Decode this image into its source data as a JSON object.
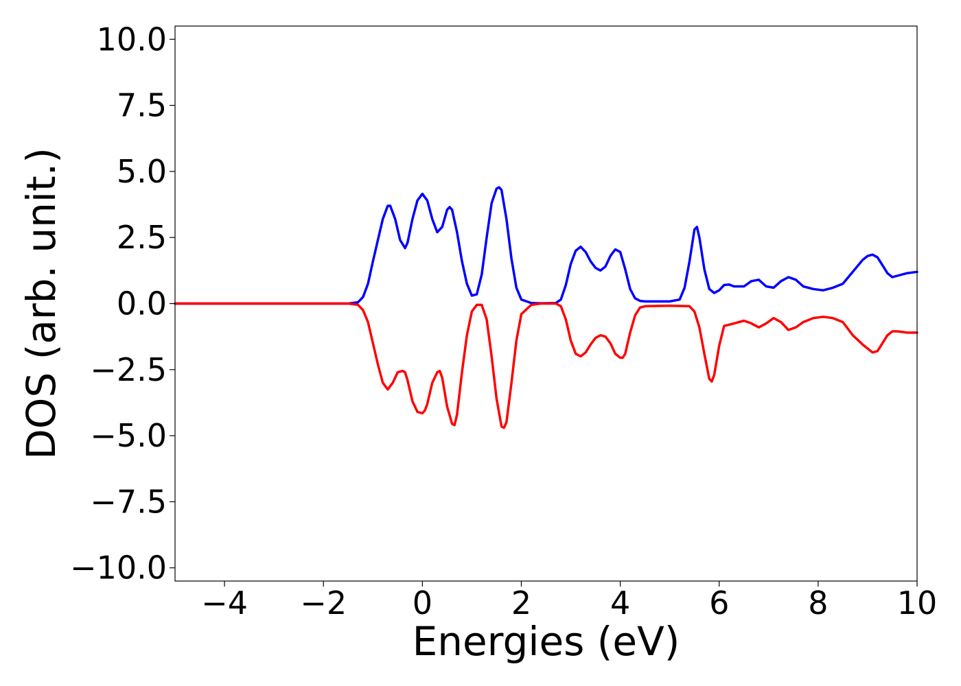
{
  "chart_data": {
    "type": "line",
    "title": "",
    "xlabel": "Energies (eV)",
    "ylabel": "DOS (arb. unit.)",
    "xlim": [
      -5,
      10
    ],
    "ylim": [
      -10.5,
      10.5
    ],
    "xticks": [
      -4,
      -2,
      0,
      2,
      4,
      6,
      8,
      10
    ],
    "xtick_labels": [
      "−4",
      "−2",
      "0",
      "2",
      "4",
      "6",
      "8",
      "10"
    ],
    "yticks": [
      10,
      7.5,
      5,
      2.5,
      0,
      -2.5,
      -5,
      -7.5,
      -10
    ],
    "ytick_labels": [
      "10.0",
      "7.5",
      "5.0",
      "2.5",
      "0.0",
      "−2.5",
      "−5.0",
      "−7.5",
      "−10.0"
    ],
    "grid": false,
    "series": [
      {
        "color": "#0000ff",
        "x": [
          -5,
          -1.5,
          -1.3,
          -1.2,
          -1.1,
          -1.0,
          -0.9,
          -0.8,
          -0.7,
          -0.65,
          -0.55,
          -0.45,
          -0.35,
          -0.3,
          -0.2,
          -0.1,
          0.0,
          0.1,
          0.2,
          0.3,
          0.4,
          0.5,
          0.55,
          0.6,
          0.7,
          0.8,
          0.9,
          1.0,
          1.1,
          1.2,
          1.3,
          1.4,
          1.5,
          1.55,
          1.6,
          1.7,
          1.8,
          1.9,
          2.0,
          2.2,
          2.4,
          2.7,
          2.8,
          2.9,
          3.0,
          3.1,
          3.2,
          3.3,
          3.4,
          3.5,
          3.6,
          3.7,
          3.8,
          3.9,
          4.0,
          4.1,
          4.2,
          4.3,
          4.4,
          4.5,
          5.0,
          5.2,
          5.3,
          5.4,
          5.5,
          5.55,
          5.6,
          5.7,
          5.8,
          5.9,
          6.0,
          6.1,
          6.2,
          6.3,
          6.5,
          6.65,
          6.8,
          6.95,
          7.1,
          7.25,
          7.4,
          7.55,
          7.7,
          7.9,
          8.1,
          8.3,
          8.5,
          8.7,
          8.9,
          9.0,
          9.1,
          9.2,
          9.3,
          9.4,
          9.5,
          9.6,
          9.8,
          10.0
        ],
        "y": [
          0,
          0,
          0.05,
          0.25,
          0.75,
          1.6,
          2.4,
          3.2,
          3.7,
          3.7,
          3.2,
          2.4,
          2.1,
          2.3,
          3.2,
          3.9,
          4.15,
          3.9,
          3.2,
          2.7,
          2.9,
          3.55,
          3.65,
          3.55,
          2.7,
          1.6,
          0.75,
          0.3,
          0.35,
          1.1,
          2.5,
          3.8,
          4.35,
          4.4,
          4.3,
          3.2,
          1.7,
          0.6,
          0.15,
          0.02,
          0.01,
          0.02,
          0.15,
          0.7,
          1.5,
          2.0,
          2.15,
          1.95,
          1.6,
          1.35,
          1.25,
          1.4,
          1.8,
          2.05,
          1.95,
          1.3,
          0.55,
          0.2,
          0.1,
          0.08,
          0.08,
          0.15,
          0.6,
          1.6,
          2.8,
          2.9,
          2.5,
          1.3,
          0.55,
          0.4,
          0.5,
          0.7,
          0.72,
          0.65,
          0.65,
          0.85,
          0.9,
          0.65,
          0.6,
          0.85,
          1.0,
          0.9,
          0.65,
          0.55,
          0.5,
          0.6,
          0.75,
          1.2,
          1.65,
          1.8,
          1.85,
          1.75,
          1.45,
          1.15,
          1.0,
          1.05,
          1.15,
          1.2
        ]
      },
      {
        "color": "#ff0000",
        "x": [
          -5,
          -1.5,
          -1.3,
          -1.2,
          -1.1,
          -1.0,
          -0.9,
          -0.8,
          -0.7,
          -0.6,
          -0.5,
          -0.4,
          -0.35,
          -0.3,
          -0.2,
          -0.1,
          0.0,
          0.05,
          0.1,
          0.2,
          0.3,
          0.35,
          0.4,
          0.5,
          0.6,
          0.65,
          0.7,
          0.8,
          0.9,
          1.0,
          1.1,
          1.2,
          1.3,
          1.4,
          1.5,
          1.6,
          1.65,
          1.7,
          1.8,
          1.9,
          2.0,
          2.2,
          2.4,
          2.7,
          2.8,
          2.9,
          3.0,
          3.1,
          3.2,
          3.3,
          3.4,
          3.5,
          3.6,
          3.7,
          3.8,
          3.9,
          4.0,
          4.05,
          4.1,
          4.2,
          4.3,
          4.4,
          4.5,
          5.0,
          5.4,
          5.5,
          5.6,
          5.7,
          5.8,
          5.85,
          5.9,
          6.0,
          6.1,
          6.3,
          6.5,
          6.65,
          6.8,
          6.95,
          7.1,
          7.25,
          7.4,
          7.55,
          7.7,
          7.9,
          8.1,
          8.3,
          8.5,
          8.7,
          8.9,
          9.0,
          9.1,
          9.2,
          9.3,
          9.4,
          9.5,
          9.6,
          9.8,
          10.0
        ],
        "y": [
          0,
          0,
          -0.05,
          -0.25,
          -0.7,
          -1.5,
          -2.3,
          -3.0,
          -3.25,
          -3.0,
          -2.6,
          -2.55,
          -2.6,
          -2.9,
          -3.7,
          -4.1,
          -4.15,
          -4.05,
          -3.8,
          -3.0,
          -2.6,
          -2.55,
          -2.8,
          -3.9,
          -4.55,
          -4.6,
          -4.2,
          -2.6,
          -1.2,
          -0.3,
          -0.05,
          -0.05,
          -0.6,
          -2.0,
          -3.6,
          -4.65,
          -4.7,
          -4.5,
          -3.0,
          -1.4,
          -0.4,
          -0.05,
          0.0,
          0.0,
          -0.1,
          -0.6,
          -1.4,
          -1.9,
          -2.0,
          -1.85,
          -1.55,
          -1.3,
          -1.2,
          -1.25,
          -1.5,
          -1.9,
          -2.05,
          -2.05,
          -1.9,
          -1.1,
          -0.45,
          -0.15,
          -0.1,
          -0.08,
          -0.1,
          -0.3,
          -0.9,
          -1.9,
          -2.85,
          -2.95,
          -2.7,
          -1.6,
          -0.85,
          -0.75,
          -0.65,
          -0.75,
          -0.9,
          -0.75,
          -0.55,
          -0.7,
          -1.0,
          -0.9,
          -0.7,
          -0.55,
          -0.5,
          -0.55,
          -0.7,
          -1.2,
          -1.55,
          -1.7,
          -1.85,
          -1.8,
          -1.5,
          -1.2,
          -1.05,
          -1.05,
          -1.1,
          -1.1
        ]
      }
    ]
  }
}
